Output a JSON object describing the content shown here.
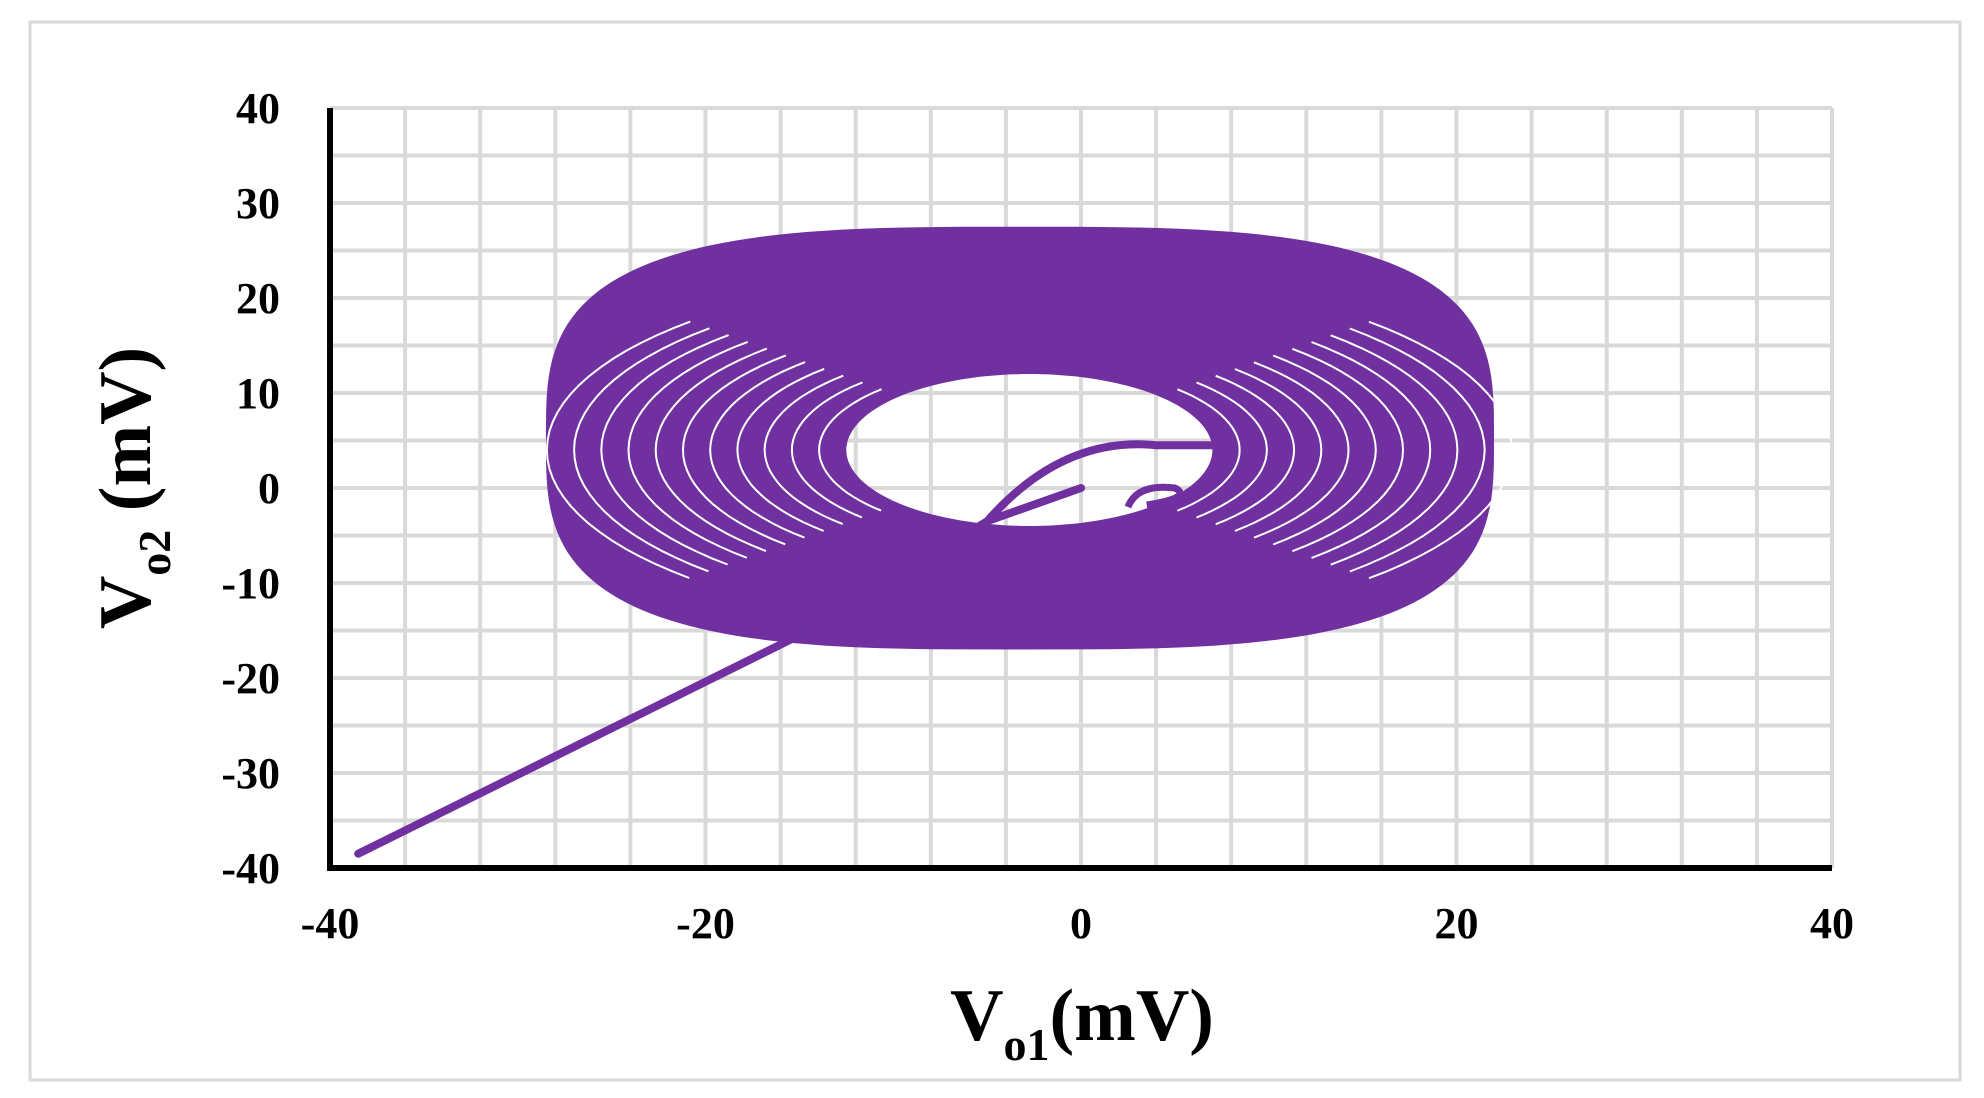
{
  "chart_data": {
    "type": "line",
    "title": "",
    "xlabel": {
      "main": "V",
      "sub": "o1",
      "rest": "(mV)"
    },
    "ylabel": {
      "main": "V",
      "sub": "o2",
      "rest": " (mV)"
    },
    "xlim": [
      -40,
      40
    ],
    "ylim": [
      -40,
      40
    ],
    "xticks": [
      "-40",
      "-20",
      "0",
      "20",
      "40"
    ],
    "yticks": [
      "40",
      "30",
      "20",
      "10",
      "0",
      "-10",
      "-20",
      "-30",
      "-40"
    ],
    "grid": true,
    "legend": "none",
    "series": [
      {
        "color": "#7030a0",
        "description_points": {
          "transient_start": [
            [
              0,
              0
            ],
            [
              -15,
              -15.5
            ],
            [
              -38.5,
              -38.5
            ]
          ],
          "attractor_outer_extent": {
            "x": [
              -28.5,
              22
            ],
            "y": [
              -17,
              27.5
            ]
          },
          "attractor_inner_hole": {
            "x": [
              -12.5,
              7
            ],
            "y": [
              -4,
              12
            ]
          },
          "attractor_center": [
            -3,
            6
          ]
        }
      }
    ]
  },
  "colors": {
    "series": "#7030a0",
    "grid": "#d9d9d9",
    "axis": "#000000"
  }
}
